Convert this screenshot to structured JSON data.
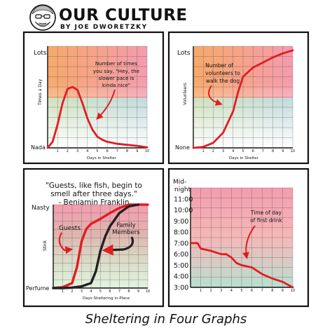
{
  "header": {
    "title": "OUR CULTURE",
    "byline": "BY JOE DWORETZKY"
  },
  "footer": {
    "caption": "Sheltering in Four Graphs"
  },
  "colors": {
    "ink": "#111111",
    "red": "#e31b23",
    "orange": "#f7a96a",
    "pink": "#f49cae",
    "green": "#b8e0b0",
    "teal": "#9fd8d8"
  },
  "chart_data": [
    {
      "type": "line",
      "ylabel": "Times a Day",
      "xlabel": "Days in Shelter",
      "y_ticks": [
        "Lots",
        "Nada"
      ],
      "x_ticks": [
        "1",
        "2",
        "3",
        "4",
        "5",
        "6",
        "7",
        "8",
        "9",
        "10"
      ],
      "xlim": [
        0,
        10
      ],
      "ylim": [
        0,
        10
      ],
      "annotation": "Number of times you say, \"Hey, the slower pace is kinda nice\"",
      "series": [
        {
          "color": "#e31b23",
          "x": [
            0,
            0.5,
            1,
            1.5,
            2,
            2.5,
            3,
            3.5,
            4,
            4.5,
            5,
            5.5,
            6,
            7,
            8,
            9,
            10
          ],
          "values": [
            0,
            0.6,
            2.3,
            4.4,
            5.8,
            6.0,
            5.7,
            4.4,
            2.9,
            1.8,
            1.1,
            0.8,
            0.6,
            0.4,
            0.3,
            0.2,
            0.05
          ]
        }
      ]
    },
    {
      "type": "line",
      "ylabel": "Volunteers",
      "xlabel": "Days in Shelter",
      "y_ticks": [
        "Lots",
        "None"
      ],
      "x_ticks": [
        "1",
        "2",
        "3",
        "4",
        "5",
        "6",
        "7",
        "8",
        "9",
        "10"
      ],
      "xlim": [
        0,
        10
      ],
      "ylim": [
        0,
        10
      ],
      "annotation": "Number of volunteers to walk the dog",
      "series": [
        {
          "color": "#e31b23",
          "x": [
            0,
            1,
            2,
            3,
            4,
            4.5,
            5,
            6,
            7,
            8,
            9,
            10
          ],
          "values": [
            0,
            0.1,
            0.5,
            1.5,
            3.6,
            5.5,
            7.0,
            7.9,
            8.4,
            8.9,
            9.3,
            9.6
          ]
        }
      ]
    },
    {
      "type": "line",
      "quote": "\"Guests, like fish, begin to smell after three days.\" - Benjamin Franklin",
      "ylabel": "Stink",
      "xlabel": "Days Sheltering in-Place",
      "y_ticks": [
        "Nasty",
        "Perfume"
      ],
      "x_ticks": [
        "1",
        "2",
        "3",
        "4",
        "5",
        "6",
        "7",
        "8",
        "9",
        "10"
      ],
      "xlim": [
        0,
        10
      ],
      "ylim": [
        0,
        10
      ],
      "series": [
        {
          "name": "Guests",
          "color": "#e31b23",
          "x": [
            0,
            1,
            2,
            2.5,
            3,
            3.5,
            4,
            5,
            6,
            7,
            8,
            9,
            10
          ],
          "values": [
            0,
            0.1,
            0.6,
            2.5,
            5.6,
            7.1,
            7.7,
            8.3,
            9.0,
            9.6,
            10,
            10,
            10
          ]
        },
        {
          "name": "Family Members",
          "color": "#222222",
          "x": [
            0,
            1,
            2,
            3,
            4,
            4.5,
            5,
            5.5,
            6,
            7,
            8,
            9
          ],
          "values": [
            0,
            0,
            0.05,
            0.2,
            0.6,
            2.0,
            4.5,
            6.2,
            7.4,
            9.0,
            9.8,
            10
          ]
        }
      ]
    },
    {
      "type": "line",
      "ylabel": "Mid-night",
      "xlabel": "Days in Shelter",
      "y_ticks": [
        "3:00",
        "4:00",
        "5:00",
        "6:00",
        "7:00",
        "8:00",
        "9:00",
        "10:00",
        "11:00",
        "Mid-night"
      ],
      "x_ticks": [
        "1",
        "2",
        "3",
        "4",
        "5",
        "6",
        "7",
        "8",
        "9",
        "10"
      ],
      "xlim": [
        0,
        10
      ],
      "ylim": [
        3,
        12
      ],
      "annotation": "Time of day of first drink",
      "series": [
        {
          "color": "#e31b23",
          "x": [
            0,
            0.7,
            1,
            2,
            3,
            3.5,
            4,
            4.5,
            5,
            6,
            7,
            8,
            9,
            10
          ],
          "values": [
            7.0,
            7.0,
            6.5,
            6.3,
            6.0,
            6.0,
            5.7,
            5.2,
            5.0,
            4.8,
            4.2,
            3.8,
            3.5,
            3.0
          ]
        }
      ]
    }
  ]
}
